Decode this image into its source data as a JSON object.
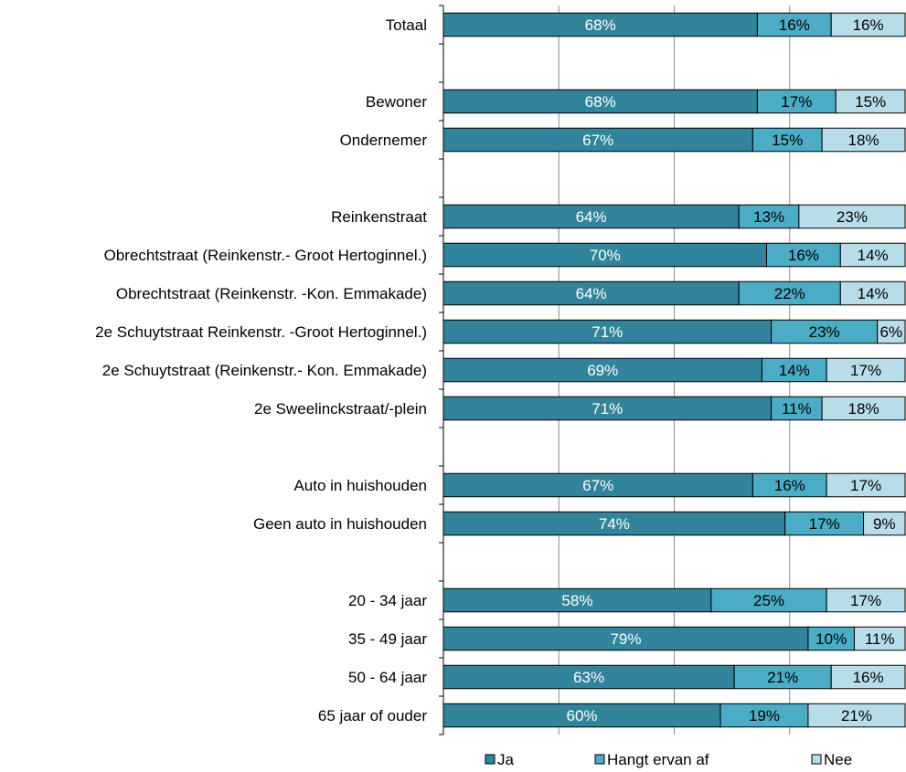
{
  "chart_data": {
    "type": "bar",
    "orientation": "horizontal",
    "stacked": true,
    "stacked_percent": true,
    "xlim": [
      0,
      100
    ],
    "grid": true,
    "legend_position": "bottom",
    "categories": [
      "Totaal",
      "",
      "Bewoner",
      "Ondernemer",
      "",
      "Reinkenstraat",
      "Obrechtstraat (Reinkenstr.- Groot Hertoginnel.)",
      "Obrechtstraat (Reinkenstr. -Kon. Emmakade)",
      "2e Schuytstraat Reinkenstr. -Groot Hertoginnel.)",
      "2e Schuytstraat (Reinkenstr.- Kon. Emmakade)",
      "2e Sweelinckstraat/-plein",
      "",
      "Auto in huishouden",
      "Geen auto in huishouden",
      "",
      "20 - 34 jaar",
      "35 - 49 jaar",
      "50 - 64 jaar",
      "65 jaar of ouder"
    ],
    "series": [
      {
        "name": "Ja",
        "color": "#31849B",
        "label_color": "#FFFFFF",
        "values": [
          68,
          null,
          68,
          67,
          null,
          64,
          70,
          64,
          71,
          69,
          71,
          null,
          67,
          74,
          null,
          58,
          79,
          63,
          60
        ]
      },
      {
        "name": "Hangt ervan af",
        "color": "#4BACC6",
        "label_color": "#000000",
        "values": [
          16,
          null,
          17,
          15,
          null,
          13,
          16,
          22,
          23,
          14,
          11,
          null,
          16,
          17,
          null,
          25,
          10,
          21,
          19
        ]
      },
      {
        "name": "Nee",
        "color": "#B7DEE8",
        "label_color": "#000000",
        "values": [
          16,
          null,
          15,
          18,
          null,
          23,
          14,
          14,
          6,
          17,
          18,
          null,
          17,
          9,
          null,
          17,
          11,
          16,
          21
        ]
      }
    ]
  }
}
